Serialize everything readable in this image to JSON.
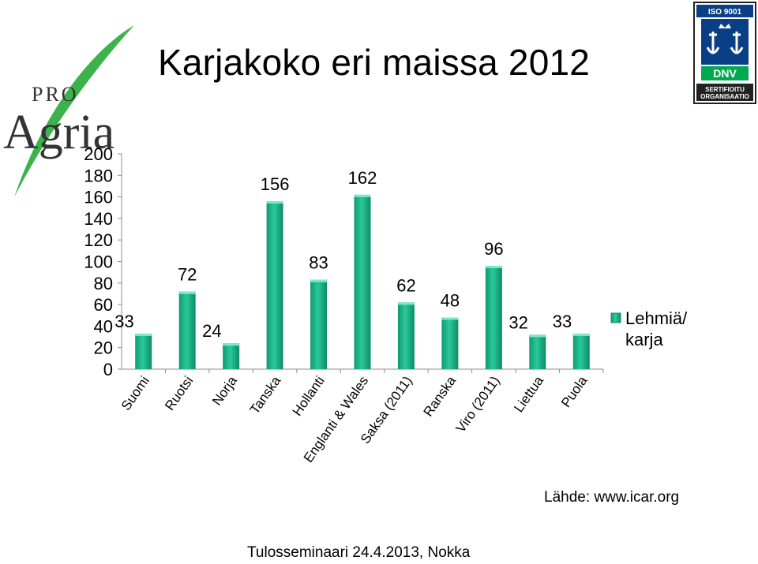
{
  "slide": {
    "title": "Karjakoko eri maissa 2012",
    "source": "Lähde: www.icar.org",
    "footer": "Tulosseminaari 24.4.2013, Nokka"
  },
  "logo": {
    "prefix": "PRO",
    "name": "Agria",
    "leaf_color": "#3cb34a",
    "text_color": "#333333"
  },
  "badge": {
    "top": "ISO 9001",
    "brand": "DNV",
    "line1": "SERTIFIOITU",
    "line2": "ORGANISAATIO",
    "icon": "anchor-crown-icon",
    "blue": "#0a3f86",
    "green": "#00a94f"
  },
  "chart_data": {
    "type": "bar",
    "categories": [
      "Suomi",
      "Ruotsi",
      "Norja",
      "Tanska",
      "Hollanti",
      "Englanti & Wales",
      "Saksa (2011)",
      "Ranska",
      "Viro (2011)",
      "Liettua",
      "Puola"
    ],
    "series": [
      {
        "name": "Lehmiä/ karja",
        "values": [
          33,
          72,
          24,
          156,
          83,
          162,
          62,
          48,
          96,
          32,
          33
        ],
        "color": "#1db088"
      }
    ],
    "ylim": [
      0,
      200
    ],
    "yticks": [
      "0",
      "20",
      "40",
      "60",
      "80",
      "100",
      "120",
      "140",
      "160",
      "180",
      "200"
    ],
    "data_labels": [
      "33",
      "72",
      "24",
      "156",
      "83",
      "162",
      "62",
      "48",
      "96",
      "32",
      "33"
    ],
    "legend": {
      "label_lines": [
        "Lehmiä/",
        "karja"
      ],
      "position": "right"
    },
    "title": "",
    "xlabel": "",
    "ylabel": "",
    "grid": false
  }
}
